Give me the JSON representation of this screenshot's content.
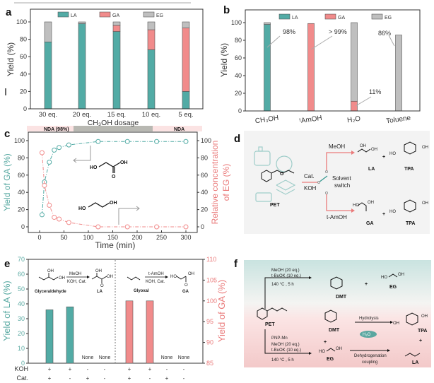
{
  "panel_labels": {
    "a": "a",
    "b": "b",
    "c": "c",
    "d": "d",
    "e": "e",
    "f": "f"
  },
  "strip": {
    "left": "NDA (98%)",
    "right": "NDA"
  },
  "colors": {
    "LA": "#52aba5",
    "GA": "#f18b8b",
    "EG": "#bfbfbf",
    "teal_text": "#5aaaa3",
    "red_text": "#ea7b7b"
  },
  "chart_data": [
    {
      "id": "a",
      "type": "bar",
      "stacked": true,
      "categories": [
        "30 eq.",
        "20 eq.",
        "15 eq.",
        "10 eq.",
        "5 eq."
      ],
      "series": [
        {
          "name": "LA",
          "values": [
            77,
            98,
            89,
            68,
            20
          ]
        },
        {
          "name": "GA",
          "values": [
            0,
            0,
            7,
            23,
            73
          ]
        },
        {
          "name": "EG",
          "values": [
            23,
            2,
            4,
            9,
            7
          ]
        }
      ],
      "xlabel": "CH₃OH dosage",
      "ylabel": "Yield (%)",
      "ylim": [
        0,
        115
      ],
      "yticks": [
        0,
        20,
        40,
        60,
        80,
        100
      ],
      "legend": "top"
    },
    {
      "id": "b",
      "type": "bar",
      "stacked": true,
      "categories": [
        "CH₃OH",
        "ᵗAmOH",
        "H₂O",
        "Toluene"
      ],
      "series": [
        {
          "name": "LA",
          "values": [
            98,
            0,
            0,
            0
          ]
        },
        {
          "name": "GA",
          "values": [
            0,
            99,
            11,
            0
          ]
        },
        {
          "name": "EG",
          "values": [
            2,
            0,
            89,
            86
          ]
        }
      ],
      "annotations": [
        "98%",
        "> 99%",
        "11%",
        "86%"
      ],
      "xlabel": "",
      "ylabel": "Yield (%)",
      "ylim": [
        0,
        115
      ],
      "yticks": [
        0,
        20,
        40,
        60,
        80,
        100
      ],
      "legend": "top"
    },
    {
      "id": "c",
      "type": "line",
      "x": [
        5,
        10,
        20,
        30,
        40,
        60,
        120,
        180,
        240,
        300
      ],
      "series": [
        {
          "name": "Yield of GA",
          "axis": "left",
          "values": [
            14,
            52,
            75,
            89,
            92,
            95,
            99,
            99,
            99,
            99
          ]
        },
        {
          "name": "Relative concentration of EG",
          "axis": "right",
          "values": [
            86,
            48,
            25,
            11,
            9,
            5,
            0,
            0,
            0,
            0
          ]
        }
      ],
      "xlabel": "Time (min)",
      "ylabel_left": "Yield of GA (%)",
      "ylabel_right": [
        "Relative concentration",
        "of EG (%)"
      ],
      "xlim": [
        -25,
        320
      ],
      "ylim": [
        -7,
        110
      ],
      "xticks": [
        0,
        50,
        100,
        150,
        200,
        250,
        300
      ],
      "yticks": [
        0,
        20,
        40,
        60,
        80,
        100
      ],
      "molecules": {
        "ga": [
          "HO",
          "OH",
          "O"
        ],
        "eg": [
          "HO",
          "OH"
        ]
      }
    },
    {
      "id": "e",
      "type": "bar",
      "groups": [
        {
          "series": "LA",
          "axis": "left",
          "values": [
            36,
            38,
            null,
            null
          ]
        },
        {
          "series": "GA",
          "axis": "right",
          "values": [
            100,
            100,
            null,
            null
          ]
        }
      ],
      "none_label": "None",
      "row_labels": [
        "KOH",
        "Cat."
      ],
      "koh": [
        "+",
        "+",
        "-",
        "-",
        "+",
        "+",
        "-",
        "-"
      ],
      "cat": [
        "+",
        "-",
        "+",
        "-",
        "+",
        "-",
        "+",
        "-"
      ],
      "ylabel_left": "Yield of LA (%)",
      "ylabel_right": "Yield of GA (%)",
      "ylim_left": [
        0,
        70
      ],
      "ylim_right": [
        85,
        110
      ],
      "yticks_left": [
        0,
        10,
        20,
        30,
        40,
        50,
        60,
        70
      ],
      "yticks_right": [
        85,
        90,
        95,
        100,
        105,
        110
      ],
      "reactions": {
        "left": {
          "substrate": "Glyceraldehyde",
          "reagent_top": "MeOH",
          "reagent_bottom": "KOH, Cat.",
          "product": "LA",
          "atoms": [
            "OH",
            "OH",
            "OH",
            "OH",
            "O"
          ]
        },
        "right": {
          "substrate": "Glyoxal",
          "reagent_top": "t-AmOH",
          "reagent_bottom": "KOH, Cat.",
          "product": "GA",
          "atoms": [
            "HO",
            "OH",
            "O"
          ]
        }
      }
    }
  ],
  "scheme_d": {
    "pet": "PET",
    "cat": "Cat.",
    "koh": "KOH",
    "switch": [
      "Solvent",
      "switch"
    ],
    "top_solvent": "MeOH",
    "bottom_solvent": "t-AmOH",
    "top_products": [
      "LA",
      "TPA"
    ],
    "bottom_products": [
      "GA",
      "TPA"
    ],
    "plus": "+",
    "atoms": [
      "OH",
      "OH",
      "O",
      "HO",
      "OH",
      "O",
      "O",
      "HO",
      "OH",
      "O",
      "O",
      "O",
      "O",
      "n"
    ]
  },
  "scheme_f": {
    "top_conditions": [
      "MeOH (20 eq.)",
      "t-BuOK (10 eq.)",
      "140 °C , 5 h"
    ],
    "top_products": [
      "DMT",
      "EG"
    ],
    "pet": "PET",
    "bottom_conditions": [
      "PNP-Mn",
      "MeOH (20 eq.)",
      "t-BuOK (10 eq.)",
      "140 °C , 5 h"
    ],
    "intermediates": [
      "DMT",
      "EG"
    ],
    "hydrolysis": "Hydrolysis",
    "water": "H₂O",
    "dehydrogenation": [
      "Dehydrogenation",
      "coupling"
    ],
    "products": [
      "TPA",
      "LA"
    ],
    "plus": "+",
    "atoms": [
      "HO",
      "OH",
      "HO",
      "OH",
      "OH",
      "OH",
      "O",
      "O"
    ]
  }
}
